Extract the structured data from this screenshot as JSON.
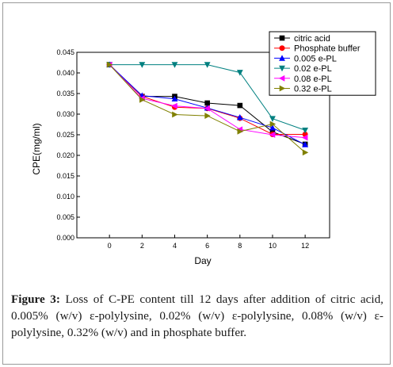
{
  "chart_data": {
    "type": "line",
    "xlabel": "Day",
    "ylabel": "CPE(mg/ml)",
    "x": [
      0,
      2,
      4,
      6,
      8,
      10,
      12
    ],
    "xlim": [
      -2,
      13.5
    ],
    "ylim": [
      0,
      0.045
    ],
    "xticks": [
      "0",
      "2",
      "4",
      "6",
      "8",
      "10",
      "12"
    ],
    "yticks": [
      "0.000",
      "0.005",
      "0.010",
      "0.015",
      "0.020",
      "0.025",
      "0.030",
      "0.035",
      "0.040",
      "0.045"
    ],
    "grid": false,
    "legend_position": "top-right",
    "series": [
      {
        "name": "citric acid",
        "color": "#000000",
        "marker": "square",
        "values": [
          0.042,
          0.0343,
          0.0343,
          0.0327,
          0.0321,
          0.0257,
          0.0227
        ]
      },
      {
        "name": "Phosphate buffer",
        "color": "#ff0000",
        "marker": "circle",
        "values": [
          0.042,
          0.0343,
          0.0317,
          0.0314,
          0.029,
          0.0251,
          0.0251
        ]
      },
      {
        "name": "0.005 e-PL",
        "color": "#0000ff",
        "marker": "triangle-up",
        "values": [
          0.042,
          0.0345,
          0.0337,
          0.0315,
          0.0292,
          0.0267,
          0.0226
        ]
      },
      {
        "name": "0.02 e-PL",
        "color": "#008080",
        "marker": "triangle-down",
        "values": [
          0.042,
          0.042,
          0.042,
          0.042,
          0.0401,
          0.0289,
          0.0261
        ]
      },
      {
        "name": "0.08 e-PL",
        "color": "#ff00ff",
        "marker": "triangle-left",
        "values": [
          0.042,
          0.0338,
          0.032,
          0.0314,
          0.0263,
          0.025,
          0.0243
        ]
      },
      {
        "name": "0.32 e-PL",
        "color": "#808000",
        "marker": "triangle-right",
        "values": [
          0.042,
          0.0335,
          0.0299,
          0.0296,
          0.0258,
          0.0276,
          0.0207
        ]
      }
    ]
  },
  "caption": {
    "label": "Figure 3:",
    "text": " Loss of C-PE content till 12 days after addition of citric acid, 0.005% (w/v) ε-polylysine, 0.02% (w/v) ε-polylysine, 0.08% (w/v) ε-polylysine, 0.32% (w/v) and in phosphate buffer."
  }
}
